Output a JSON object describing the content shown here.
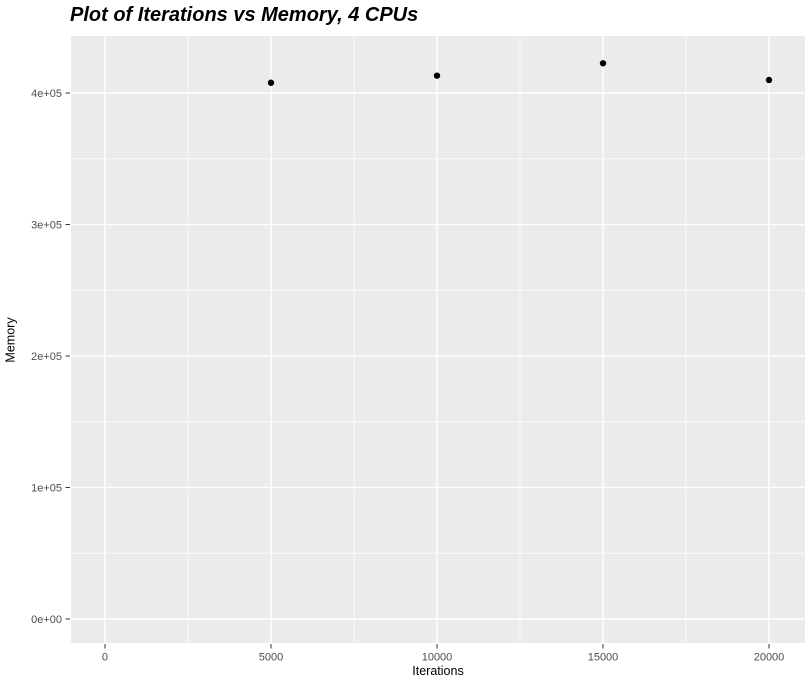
{
  "chart_data": {
    "type": "scatter",
    "title": "Plot of Iterations vs Memory, 4 CPUs",
    "xlabel": "Iterations",
    "ylabel": "Memory",
    "x": [
      5000,
      10000,
      15000,
      20000
    ],
    "y": [
      407800,
      413200,
      422600,
      409900
    ],
    "xlim": [
      -1024,
      21084
    ],
    "ylim": [
      -18251,
      443346
    ],
    "x_ticks": {
      "values": [
        0,
        5000,
        10000,
        15000,
        20000
      ],
      "labels": [
        "0",
        "5000",
        "10000",
        "15000",
        "20000"
      ]
    },
    "y_ticks": {
      "values": [
        0,
        100000,
        200000,
        300000,
        400000
      ],
      "labels": [
        "0e+00",
        "1e+05",
        "2e+05",
        "3e+05",
        "4e+05"
      ]
    },
    "x_minor_ticks": [
      2500,
      7500,
      12500,
      17500
    ],
    "y_minor_ticks": [
      50000,
      150000,
      250000,
      350000
    ],
    "grid": true,
    "legend": "none",
    "style": {
      "panel_bg": "#ebebeb",
      "grid_color": "#ffffff",
      "point_color": "#000000",
      "tick_label_color": "#4d4d4d",
      "tick_mark_color": "#333333",
      "axis_title_color": "#000000",
      "title_color": "#000000"
    }
  }
}
